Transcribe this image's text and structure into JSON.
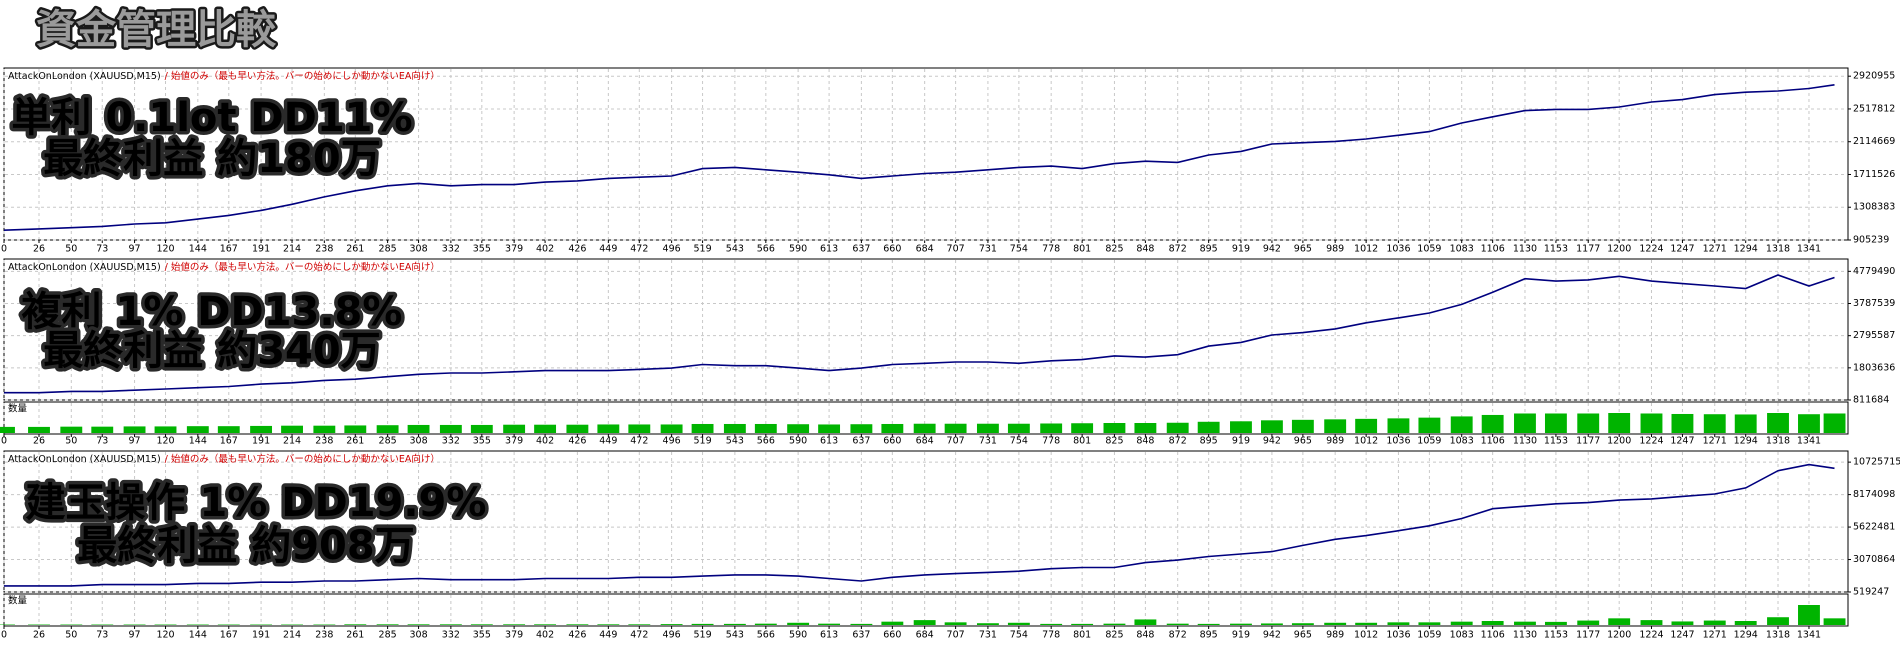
{
  "page_title": "資金管理比較",
  "chart_data": [
    {
      "type": "line",
      "title": "AttackOnLondon (XAUUSD,M15)",
      "subtitle": "/ 始値のみ（最も早い方法。バーの始めにしか動かないEA向け）",
      "annotations": [
        "単利 0.1lot DD11%",
        "最終利益 約180万"
      ],
      "annotation_color": "#3d9be9",
      "color": "#00007f",
      "grid": true,
      "x": [
        0,
        26,
        50,
        73,
        97,
        120,
        144,
        167,
        191,
        214,
        238,
        261,
        285,
        308,
        332,
        355,
        379,
        402,
        426,
        449,
        472,
        496,
        519,
        543,
        566,
        590,
        613,
        637,
        660,
        684,
        707,
        731,
        754,
        778,
        801,
        825,
        848,
        872,
        895,
        919,
        942,
        965,
        989,
        1012,
        1036,
        1059,
        1083,
        1106,
        1130,
        1153,
        1177,
        1200,
        1224,
        1247,
        1271,
        1294,
        1318,
        1341,
        1360
      ],
      "values": [
        1026000,
        1042000,
        1057000,
        1072000,
        1102000,
        1117000,
        1163000,
        1208000,
        1269000,
        1345000,
        1436000,
        1511000,
        1572000,
        1602000,
        1572000,
        1587000,
        1587000,
        1618000,
        1633000,
        1663000,
        1678000,
        1693000,
        1784000,
        1799000,
        1769000,
        1739000,
        1708000,
        1663000,
        1693000,
        1724000,
        1739000,
        1769000,
        1799000,
        1815000,
        1784000,
        1845000,
        1875000,
        1860000,
        1951000,
        1996000,
        2087000,
        2103000,
        2118000,
        2148000,
        2194000,
        2239000,
        2345000,
        2421000,
        2497000,
        2512000,
        2512000,
        2542000,
        2603000,
        2633000,
        2694000,
        2724000,
        2739000,
        2769000,
        2815000
      ],
      "xlim": [
        0,
        1370
      ],
      "xticks": [
        0,
        26,
        50,
        73,
        97,
        120,
        144,
        167,
        191,
        214,
        238,
        261,
        285,
        308,
        332,
        355,
        379,
        402,
        426,
        449,
        472,
        496,
        519,
        543,
        566,
        590,
        613,
        637,
        660,
        684,
        707,
        731,
        754,
        778,
        801,
        825,
        848,
        872,
        895,
        919,
        942,
        965,
        989,
        1012,
        1036,
        1059,
        1083,
        1106,
        1130,
        1153,
        1177,
        1200,
        1224,
        1247,
        1271,
        1294,
        1318,
        1341
      ],
      "ylim": [
        905239,
        3021740
      ],
      "yticks": [
        905239,
        1308383,
        1711526,
        2114669,
        2517812,
        2920955
      ]
    },
    {
      "type": "line",
      "title": "AttackOnLondon (XAUUSD,M15)",
      "subtitle": "/ 始値のみ（最も早い方法。バーの始めにしか動かないEA向け）",
      "annotations": [
        "複利 1% DD13.8%",
        "最終利益 約340万"
      ],
      "annotation_color": "#f5a030",
      "color": "#00007f",
      "grid": true,
      "x": [
        0,
        26,
        50,
        73,
        97,
        120,
        144,
        167,
        191,
        214,
        238,
        261,
        285,
        308,
        332,
        355,
        379,
        402,
        426,
        449,
        472,
        496,
        519,
        543,
        566,
        590,
        613,
        637,
        660,
        684,
        707,
        731,
        754,
        778,
        801,
        825,
        848,
        872,
        895,
        919,
        942,
        965,
        989,
        1012,
        1036,
        1059,
        1083,
        1106,
        1130,
        1153,
        1177,
        1200,
        1224,
        1247,
        1271,
        1294,
        1318,
        1341,
        1360
      ],
      "values": [
        1038000,
        1038000,
        1076000,
        1076000,
        1114000,
        1152000,
        1190000,
        1227000,
        1303000,
        1341000,
        1416000,
        1454000,
        1530000,
        1605000,
        1643000,
        1643000,
        1681000,
        1719000,
        1719000,
        1719000,
        1756000,
        1794000,
        1908000,
        1870000,
        1870000,
        1794000,
        1719000,
        1794000,
        1908000,
        1945000,
        1983000,
        1983000,
        1945000,
        2021000,
        2059000,
        2172000,
        2134000,
        2210000,
        2474000,
        2588000,
        2815000,
        2890000,
        3003000,
        3192000,
        3343000,
        3495000,
        3759000,
        4137000,
        4553000,
        4477000,
        4515000,
        4628000,
        4477000,
        4402000,
        4326000,
        4250000,
        4666000,
        4326000,
        4591000
      ],
      "volume_label": "数量",
      "volume": [
        0.25,
        0.25,
        0.26,
        0.26,
        0.27,
        0.27,
        0.28,
        0.28,
        0.29,
        0.3,
        0.3,
        0.31,
        0.32,
        0.33,
        0.33,
        0.33,
        0.34,
        0.34,
        0.34,
        0.35,
        0.35,
        0.35,
        0.37,
        0.37,
        0.37,
        0.36,
        0.35,
        0.36,
        0.37,
        0.38,
        0.38,
        0.38,
        0.38,
        0.39,
        0.4,
        0.41,
        0.41,
        0.42,
        0.46,
        0.48,
        0.52,
        0.54,
        0.56,
        0.58,
        0.6,
        0.63,
        0.68,
        0.74,
        0.8,
        0.8,
        0.8,
        0.82,
        0.8,
        0.78,
        0.77,
        0.76,
        0.82,
        0.77,
        0.8
      ],
      "volume_color": "#00b400",
      "xlim": [
        0,
        1370
      ],
      "xticks": [
        0,
        26,
        50,
        73,
        97,
        120,
        144,
        167,
        191,
        214,
        238,
        261,
        285,
        308,
        332,
        355,
        379,
        402,
        426,
        449,
        472,
        496,
        519,
        543,
        566,
        590,
        613,
        637,
        660,
        684,
        707,
        731,
        754,
        778,
        801,
        825,
        848,
        872,
        895,
        919,
        942,
        965,
        989,
        1012,
        1036,
        1059,
        1083,
        1106,
        1130,
        1153,
        1177,
        1200,
        1224,
        1247,
        1271,
        1294,
        1318,
        1341
      ],
      "ylim": [
        811684,
        5160000
      ],
      "yticks": [
        811684,
        1803636,
        2795587,
        3787539,
        4779490
      ]
    },
    {
      "type": "line",
      "title": "AttackOnLondon (XAUUSD,M15)",
      "subtitle": "/ 始値のみ（最も早い方法。バーの始めにしか動かないEA向け）",
      "annotations": [
        "建玉操作 1% DD19.9%",
        "最終利益 約908万"
      ],
      "annotation_color": "#ee55cc",
      "color": "#00007f",
      "grid": true,
      "x": [
        0,
        26,
        50,
        73,
        97,
        120,
        144,
        167,
        191,
        214,
        238,
        261,
        285,
        308,
        332,
        355,
        379,
        402,
        426,
        449,
        472,
        496,
        519,
        543,
        566,
        590,
        613,
        637,
        660,
        684,
        707,
        731,
        754,
        778,
        801,
        825,
        848,
        872,
        895,
        919,
        942,
        965,
        989,
        1012,
        1036,
        1059,
        1083,
        1106,
        1130,
        1153,
        1177,
        1200,
        1224,
        1247,
        1271,
        1294,
        1318,
        1341,
        1360
      ],
      "values": [
        1001000,
        1001000,
        1001000,
        1097000,
        1097000,
        1097000,
        1193000,
        1193000,
        1290000,
        1290000,
        1386000,
        1386000,
        1482000,
        1578000,
        1482000,
        1482000,
        1482000,
        1578000,
        1578000,
        1578000,
        1675000,
        1675000,
        1771000,
        1867000,
        1867000,
        1771000,
        1578000,
        1386000,
        1675000,
        1867000,
        1964000,
        2060000,
        2156000,
        2349000,
        2445000,
        2445000,
        2830000,
        3023000,
        3312000,
        3504000,
        3697000,
        4178000,
        4660000,
        4948000,
        5334000,
        5719000,
        6296000,
        7067000,
        7259000,
        7452000,
        7548000,
        7741000,
        7837000,
        8030000,
        8222000,
        8704000,
        10051000,
        10533000,
        10244000
      ],
      "volume_label": "数量",
      "volume": [
        0.02,
        0.02,
        0.02,
        0.02,
        0.02,
        0.02,
        0.02,
        0.02,
        0.02,
        0.02,
        0.02,
        0.03,
        0.03,
        0.03,
        0.03,
        0.03,
        0.03,
        0.03,
        0.03,
        0.03,
        0.03,
        0.04,
        0.05,
        0.05,
        0.06,
        0.1,
        0.06,
        0.05,
        0.15,
        0.22,
        0.12,
        0.08,
        0.1,
        0.05,
        0.05,
        0.06,
        0.25,
        0.06,
        0.05,
        0.06,
        0.07,
        0.08,
        0.1,
        0.1,
        0.12,
        0.12,
        0.15,
        0.18,
        0.15,
        0.14,
        0.2,
        0.3,
        0.22,
        0.16,
        0.2,
        0.18,
        0.35,
        0.9,
        0.3
      ],
      "volume_color": "#00b400",
      "xlim": [
        0,
        1370
      ],
      "xticks": [
        0,
        26,
        50,
        73,
        97,
        120,
        144,
        167,
        191,
        214,
        238,
        261,
        285,
        308,
        332,
        355,
        379,
        402,
        426,
        449,
        472,
        496,
        519,
        543,
        566,
        590,
        613,
        637,
        660,
        684,
        707,
        731,
        754,
        778,
        801,
        825,
        848,
        872,
        895,
        919,
        942,
        965,
        989,
        1012,
        1036,
        1059,
        1083,
        1106,
        1130,
        1153,
        1177,
        1200,
        1224,
        1247,
        1271,
        1294,
        1318,
        1341
      ],
      "ylim": [
        519247,
        11600000
      ],
      "yticks": [
        519247,
        3070864,
        5622481,
        8174098,
        10725715
      ]
    }
  ]
}
